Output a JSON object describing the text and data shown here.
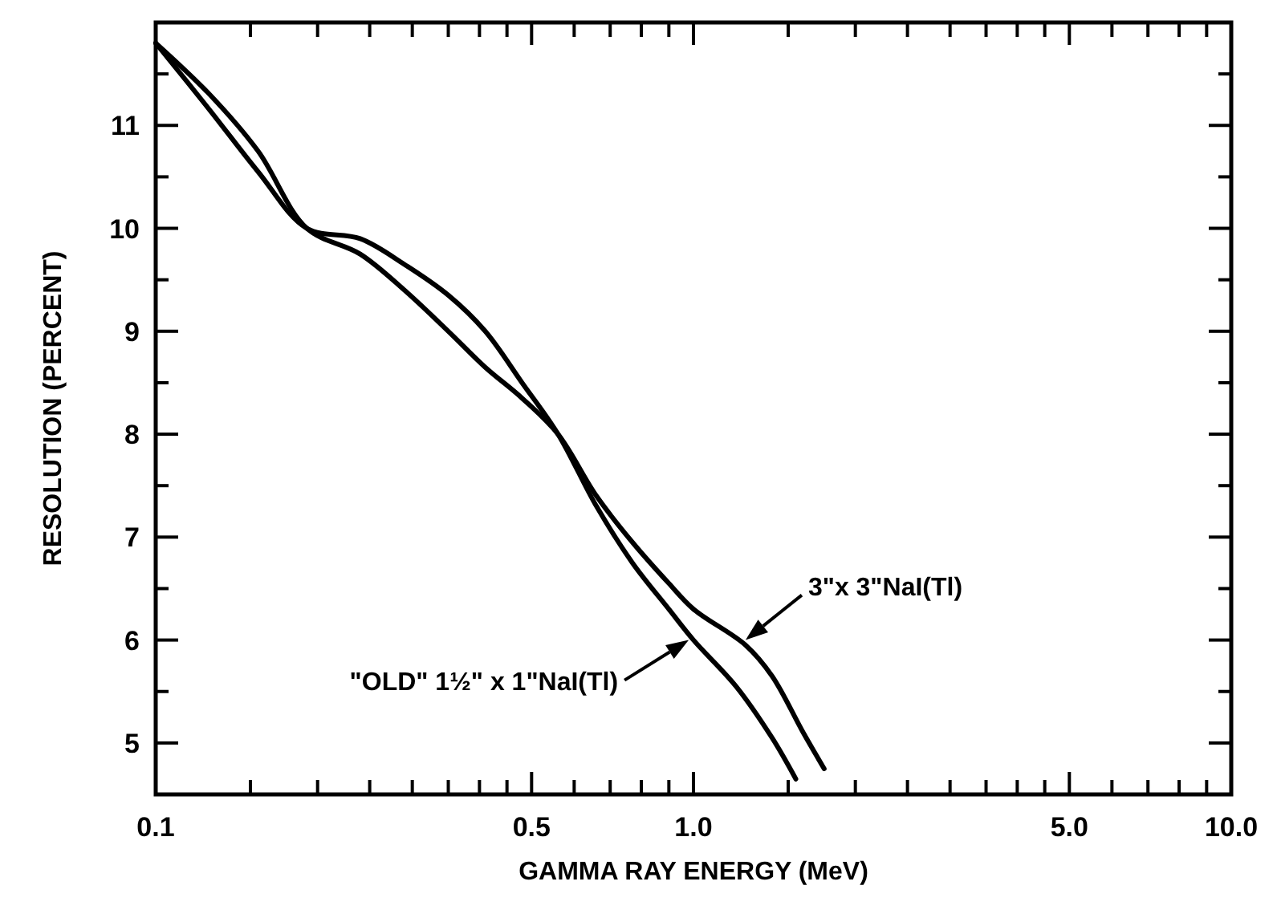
{
  "chart_data": {
    "type": "line",
    "xlabel": "GAMMA RAY ENERGY (MeV)",
    "ylabel": "RESOLUTION (PERCENT)",
    "log": "x",
    "grid": false,
    "marker": "none",
    "line_style": "solid",
    "xlim": [
      0.1,
      10
    ],
    "ylim": [
      4.5,
      12
    ],
    "xticks": [
      {
        "value": 0.1,
        "label": "0.1"
      },
      {
        "value": 0.15,
        "label": null
      },
      {
        "value": 0.2,
        "label": null
      },
      {
        "value": 0.25,
        "label": null
      },
      {
        "value": 0.3,
        "label": null
      },
      {
        "value": 0.35,
        "label": null
      },
      {
        "value": 0.4,
        "label": null
      },
      {
        "value": 0.45,
        "label": null
      },
      {
        "value": 0.5,
        "label": "0.5"
      },
      {
        "value": 0.6,
        "label": null
      },
      {
        "value": 0.7,
        "label": null
      },
      {
        "value": 0.8,
        "label": null
      },
      {
        "value": 0.9,
        "label": null
      },
      {
        "value": 1,
        "label": "1.0"
      },
      {
        "value": 1.5,
        "label": null
      },
      {
        "value": 2,
        "label": null
      },
      {
        "value": 2.5,
        "label": null
      },
      {
        "value": 3,
        "label": null
      },
      {
        "value": 3.5,
        "label": null
      },
      {
        "value": 4,
        "label": null
      },
      {
        "value": 4.5,
        "label": null
      },
      {
        "value": 5,
        "label": "5.0"
      },
      {
        "value": 6,
        "label": null
      },
      {
        "value": 7,
        "label": null
      },
      {
        "value": 8,
        "label": null
      },
      {
        "value": 9,
        "label": null
      },
      {
        "value": 10,
        "label": "10.0"
      }
    ],
    "yticks": [
      5,
      {
        "value": 5.5,
        "label": null
      },
      6,
      {
        "value": 6.5,
        "label": null
      },
      7,
      {
        "value": 7.5,
        "label": null
      },
      8,
      {
        "value": 8.5,
        "label": null
      },
      9,
      {
        "value": 9.5,
        "label": null
      },
      10,
      {
        "value": 10.5,
        "label": null
      },
      11,
      {
        "value": 11.5,
        "label": null
      }
    ],
    "series": [
      {
        "color": "#000000",
        "x": [
          0.1,
          0.126,
          0.155,
          0.191,
          0.24,
          0.29,
          0.35,
          0.41,
          0.48,
          0.56,
          0.66,
          0.77,
          0.9,
          1.0,
          1.2,
          1.4,
          1.55
        ],
        "values": [
          11.8,
          11.15,
          10.55,
          10.0,
          9.9,
          9.65,
          9.35,
          9.0,
          8.5,
          8.0,
          7.3,
          6.75,
          6.3,
          6.0,
          5.55,
          5.05,
          4.65
        ]
      },
      {
        "color": "#000000",
        "x": [
          0.1,
          0.126,
          0.155,
          0.191,
          0.24,
          0.29,
          0.35,
          0.41,
          0.48,
          0.56,
          0.66,
          0.77,
          0.9,
          1.0,
          1.25,
          1.4,
          1.6,
          1.75
        ],
        "values": [
          11.8,
          11.3,
          10.75,
          10.0,
          9.75,
          9.4,
          9.0,
          8.65,
          8.35,
          8.0,
          7.4,
          6.95,
          6.55,
          6.3,
          5.95,
          5.65,
          5.1,
          4.75
        ]
      }
    ],
    "annotations": [
      {
        "text": "\"OLD\" 1½\" x 1\"NaI(Tl)",
        "x": 0.98,
        "y": 6.0
      },
      {
        "text": "3\"x 3\"NaI(Tl)",
        "x": 1.25,
        "y": 6.0
      }
    ]
  }
}
